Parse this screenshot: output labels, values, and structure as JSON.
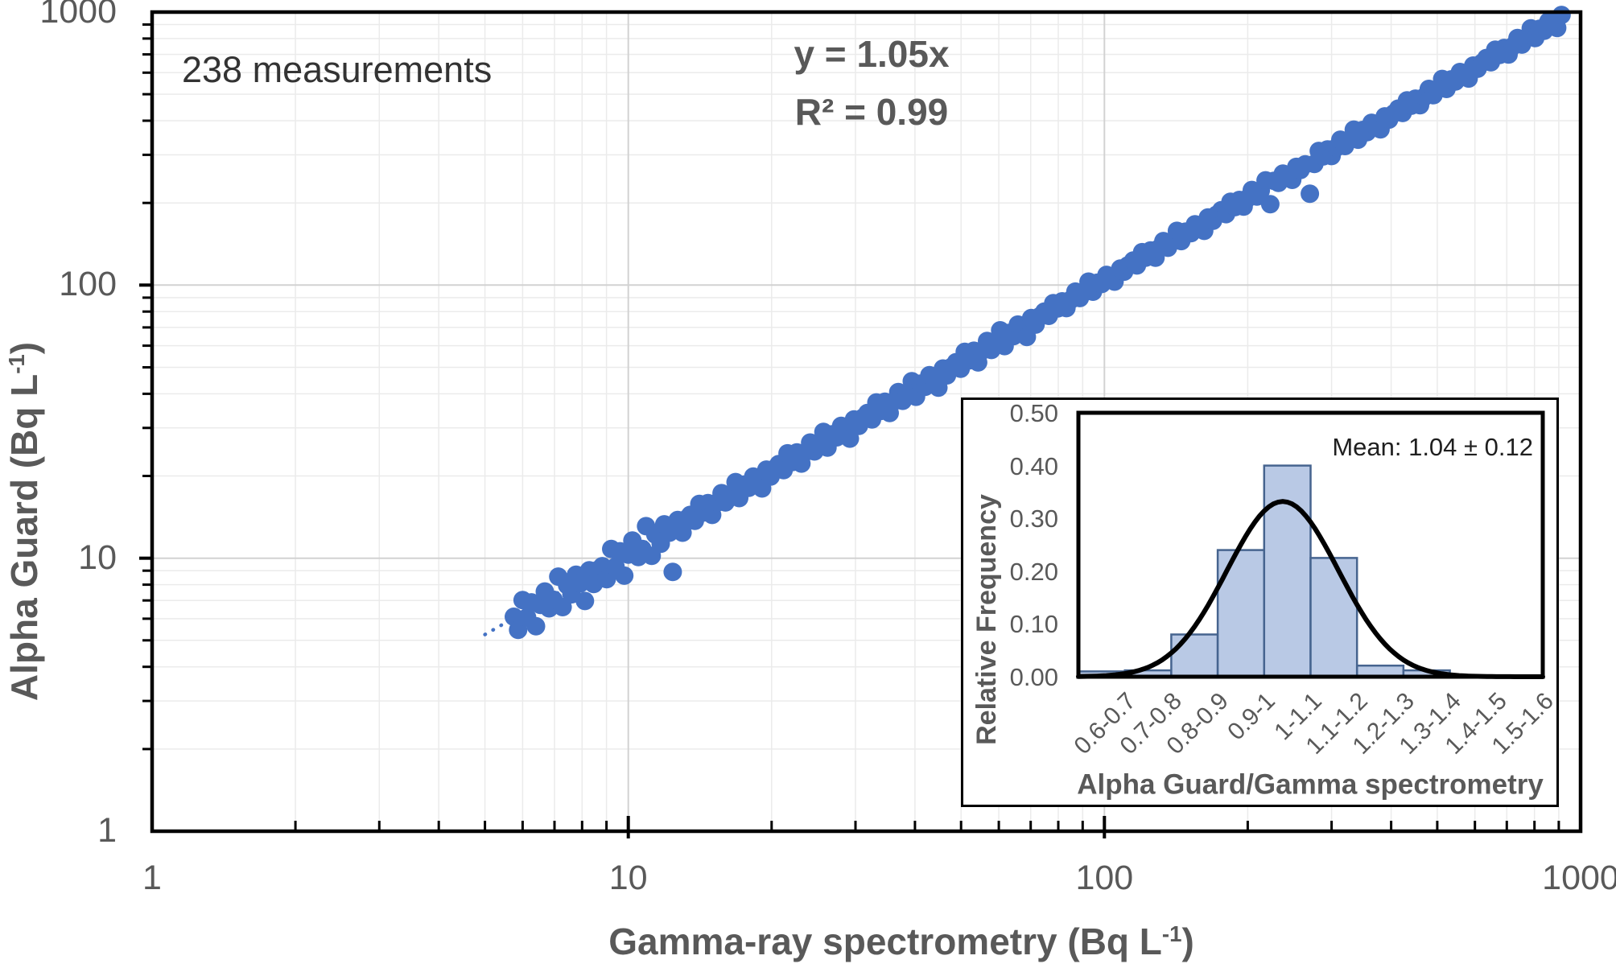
{
  "page": {
    "background": "#ffffff"
  },
  "colors": {
    "scatter": "#4472c4",
    "trendline": "#4472c4",
    "bar_fill": "#b9c9e5",
    "bar_border": "#46648f",
    "curve": "#000000",
    "grid_minor": "#ebebeb",
    "grid_major": "#d2d2d2",
    "axis": "#000000",
    "text_gray": "#595959",
    "annotation_text": "#333333",
    "mean_text": "#1f1f1f"
  },
  "main_chart": {
    "annotation": "238 measurements",
    "equation_line1": "y = 1.05x",
    "equation_line2": "R² = 0.99",
    "x_title": {
      "text": "Gamma-ray spectrometry (Bq L",
      "sup": "-1",
      "close": ")"
    },
    "y_title": {
      "text": "Alpha Guard (Bq L",
      "sup": "-1",
      "close": ")"
    },
    "x_ticks": [
      "1",
      "10",
      "100",
      "1000"
    ],
    "y_ticks": [
      "1000",
      "100",
      "10",
      "1"
    ]
  },
  "inset": {
    "y_title": "Relative Frequency",
    "x_title": "Alpha Guard/Gamma spectrometry",
    "mean_label": "Mean: 1.04 ± 0.12",
    "y_ticks": [
      "0.50",
      "0.40",
      "0.30",
      "0.20",
      "0.10",
      "0.00"
    ]
  },
  "chart_data": [
    {
      "type": "scatter",
      "title": "",
      "xlabel": "Gamma-ray spectrometry (Bq L-1)",
      "ylabel": "Alpha Guard (Bq L-1)",
      "x_scale": "log",
      "y_scale": "log",
      "xlim": [
        1,
        1000
      ],
      "ylim": [
        1,
        1000
      ],
      "n_measurements": 238,
      "annotation": "238 measurements",
      "fit": {
        "equation": "y = 1.05x",
        "slope": 1.05,
        "r_squared": 0.99,
        "style": "dotted"
      },
      "points": [
        [
          5.75,
          6.1
        ],
        [
          5.87,
          5.46
        ],
        [
          6.0,
          7.02
        ],
        [
          6.13,
          6.07
        ],
        [
          6.26,
          6.89
        ],
        [
          6.4,
          5.63
        ],
        [
          6.54,
          6.74
        ],
        [
          6.68,
          7.55
        ],
        [
          6.82,
          6.55
        ],
        [
          6.97,
          7.04
        ],
        [
          7.13,
          8.56
        ],
        [
          7.28,
          6.62
        ],
        [
          7.44,
          7.96
        ],
        [
          7.6,
          7.37
        ],
        [
          7.77,
          8.7
        ],
        [
          7.93,
          8.09
        ],
        [
          8.11,
          6.97
        ],
        [
          8.28,
          9.03
        ],
        [
          8.46,
          8.04
        ],
        [
          8.64,
          9.07
        ],
        [
          8.82,
          9.35
        ],
        [
          9.01,
          8.38
        ],
        [
          9.21,
          10.8
        ],
        [
          9.4,
          9.31
        ],
        [
          9.61,
          10.6
        ],
        [
          9.81,
          8.63
        ],
        [
          10.0,
          10.3
        ],
        [
          10.2,
          11.6
        ],
        [
          10.5,
          10.1
        ],
        [
          10.7,
          10.8
        ],
        [
          10.9,
          13.1
        ],
        [
          11.2,
          10.2
        ],
        [
          11.4,
          12.2
        ],
        [
          11.7,
          11.3
        ],
        [
          11.9,
          13.3
        ],
        [
          12.2,
          12.4
        ],
        [
          12.4,
          8.9
        ],
        [
          12.7,
          13.8
        ],
        [
          13.0,
          12.4
        ],
        [
          13.3,
          14.0
        ],
        [
          13.5,
          14.4
        ],
        [
          13.8,
          13.7
        ],
        [
          14.1,
          15.8
        ],
        [
          14.4,
          14.7
        ],
        [
          14.7,
          15.9
        ],
        [
          15.0,
          14.4
        ],
        [
          15.4,
          16.0
        ],
        [
          15.7,
          17.3
        ],
        [
          16.0,
          16.0
        ],
        [
          16.4,
          16.9
        ],
        [
          16.8,
          19.0
        ],
        [
          17.1,
          16.6
        ],
        [
          17.5,
          18.6
        ],
        [
          17.9,
          18.1
        ],
        [
          18.3,
          19.9
        ],
        [
          18.7,
          19.4
        ],
        [
          19.1,
          18.0
        ],
        [
          19.5,
          21.1
        ],
        [
          19.9,
          19.9
        ],
        [
          20.3,
          21.3
        ],
        [
          20.7,
          22.1
        ],
        [
          21.2,
          21.0
        ],
        [
          21.6,
          24.2
        ],
        [
          22.1,
          22.5
        ],
        [
          22.6,
          24.4
        ],
        [
          23.1,
          22.2
        ],
        [
          23.6,
          24.5
        ],
        [
          24.1,
          26.5
        ],
        [
          24.6,
          24.6
        ],
        [
          25.1,
          25.9
        ],
        [
          25.7,
          29.0
        ],
        [
          26.2,
          25.4
        ],
        [
          26.8,
          28.4
        ],
        [
          27.4,
          27.7
        ],
        [
          28.0,
          30.5
        ],
        [
          28.6,
          29.7
        ],
        [
          29.2,
          27.4
        ],
        [
          29.8,
          32.2
        ],
        [
          30.5,
          30.5
        ],
        [
          31.1,
          32.7
        ],
        [
          31.8,
          34.0
        ],
        [
          32.5,
          32.2
        ],
        [
          33.2,
          37.2
        ],
        [
          33.9,
          34.6
        ],
        [
          34.6,
          37.4
        ],
        [
          35.4,
          34.0
        ],
        [
          36.2,
          37.6
        ],
        [
          36.9,
          40.6
        ],
        [
          37.7,
          37.7
        ],
        [
          38.5,
          39.7
        ],
        [
          39.4,
          44.5
        ],
        [
          40.2,
          39.0
        ],
        [
          41.1,
          43.6
        ],
        [
          42.0,
          42.4
        ],
        [
          42.9,
          46.8
        ],
        [
          43.8,
          45.6
        ],
        [
          44.8,
          42.1
        ],
        [
          45.8,
          49.5
        ],
        [
          46.7,
          46.7
        ],
        [
          47.8,
          50.2
        ],
        [
          48.8,
          52.2
        ],
        [
          49.9,
          49.4
        ],
        [
          50.9,
          57.0
        ],
        [
          52.0,
          53.0
        ],
        [
          53.2,
          57.5
        ],
        [
          54.3,
          52.1
        ],
        [
          55.5,
          57.7
        ],
        [
          56.7,
          62.4
        ],
        [
          57.9,
          57.9
        ],
        [
          59.2,
          61.0
        ],
        [
          60.4,
          68.3
        ],
        [
          61.7,
          59.8
        ],
        [
          63.0,
          66.8
        ],
        [
          64.4,
          65.0
        ],
        [
          65.8,
          71.7
        ],
        [
          67.2,
          69.9
        ],
        [
          68.7,
          64.6
        ],
        [
          70.2,
          75.8
        ],
        [
          71.7,
          71.7
        ],
        [
          73.2,
          76.9
        ],
        [
          74.8,
          80.0
        ],
        [
          76.4,
          77.2
        ],
        [
          78.1,
          85.9
        ],
        [
          79.8,
          82.2
        ],
        [
          81.5,
          87.2
        ],
        [
          83.2,
          82.4
        ],
        [
          85.0,
          88.4
        ],
        [
          86.9,
          94.7
        ],
        [
          88.8,
          89.7
        ],
        [
          90.7,
          94.3
        ],
        [
          92.6,
          103
        ],
        [
          94.6,
          94.6
        ],
        [
          96.6,
          102
        ],
        [
          98.7,
          101
        ],
        [
          101,
          109
        ],
        [
          103,
          107
        ],
        [
          105,
          103
        ],
        [
          108,
          115
        ],
        [
          110,
          112
        ],
        [
          112,
          118
        ],
        [
          115,
          123
        ],
        [
          117,
          118
        ],
        [
          120,
          132
        ],
        [
          122,
          126
        ],
        [
          125,
          134
        ],
        [
          128,
          126
        ],
        [
          130,
          136
        ],
        [
          133,
          145
        ],
        [
          136,
          137
        ],
        [
          139,
          145
        ],
        [
          142,
          158
        ],
        [
          145,
          145
        ],
        [
          148,
          157
        ],
        [
          152,
          155
        ],
        [
          155,
          167
        ],
        [
          158,
          164
        ],
        [
          162,
          158
        ],
        [
          165,
          177
        ],
        [
          169,
          172
        ],
        [
          172,
          181
        ],
        [
          176,
          188
        ],
        [
          180,
          182
        ],
        [
          184,
          202
        ],
        [
          188,
          193
        ],
        [
          192,
          205
        ],
        [
          196,
          194
        ],
        [
          200,
          208
        ],
        [
          204,
          223
        ],
        [
          209,
          211
        ],
        [
          213,
          222
        ],
        [
          218,
          242
        ],
        [
          223,
          198
        ],
        [
          227,
          241
        ],
        [
          232,
          237
        ],
        [
          237,
          256
        ],
        [
          242,
          252
        ],
        [
          248,
          243
        ],
        [
          253,
          271
        ],
        [
          258,
          264
        ],
        [
          264,
          277
        ],
        [
          270,
          216
        ],
        [
          276,
          278
        ],
        [
          282,
          310
        ],
        [
          288,
          296
        ],
        [
          294,
          314
        ],
        [
          300,
          297
        ],
        [
          307,
          319
        ],
        [
          313,
          341
        ],
        [
          320,
          323
        ],
        [
          327,
          340
        ],
        [
          334,
          371
        ],
        [
          341,
          341
        ],
        [
          349,
          370
        ],
        [
          356,
          363
        ],
        [
          364,
          393
        ],
        [
          372,
          387
        ],
        [
          380,
          372
        ],
        [
          388,
          415
        ],
        [
          396,
          404
        ],
        [
          405,
          425
        ],
        [
          414,
          443
        ],
        [
          423,
          427
        ],
        [
          432,
          475
        ],
        [
          441,
          454
        ],
        [
          450,
          482
        ],
        [
          460,
          456
        ],
        [
          470,
          489
        ],
        [
          480,
          523
        ],
        [
          491,
          496
        ],
        [
          501,
          521
        ],
        [
          512,
          569
        ],
        [
          523,
          523
        ],
        [
          535,
          567
        ],
        [
          546,
          557
        ],
        [
          558,
          603
        ],
        [
          570,
          593
        ],
        [
          582,
          571
        ],
        [
          595,
          637
        ],
        [
          608,
          620
        ],
        [
          621,
          652
        ],
        [
          634,
          679
        ],
        [
          648,
          655
        ],
        [
          662,
          728
        ],
        [
          676,
          697
        ],
        [
          691,
          739
        ],
        [
          706,
          699
        ],
        [
          721,
          750
        ],
        [
          737,
          803
        ],
        [
          753,
          760
        ],
        [
          769,
          800
        ],
        [
          786,
          872
        ],
        [
          803,
          803
        ],
        [
          820,
          869
        ],
        [
          838,
          854
        ],
        [
          856,
          924
        ],
        [
          874,
          909
        ],
        [
          893,
          875
        ],
        [
          912,
          976
        ]
      ]
    },
    {
      "type": "bar",
      "title": "",
      "categories": [
        "0.6-0.7",
        "0.7-0.8",
        "0.8-0.9",
        "0.9-1",
        "1-1.1",
        "1.1-1.2",
        "1.2-1.3",
        "1.3-1.4",
        "1.4-1.5",
        "1.5-1.6"
      ],
      "values": [
        0.01,
        0.012,
        0.08,
        0.24,
        0.4,
        0.225,
        0.021,
        0.012,
        0,
        0
      ],
      "xlabel": "Alpha Guard/Gamma spectrometry",
      "ylabel": "Relative Frequency",
      "ylim": [
        0,
        0.5
      ],
      "y_tick_step": 0.1,
      "mean_label": "Mean: 1.04 ± 0.12",
      "normal_curve": {
        "mean": 1.04,
        "sd": 0.12,
        "peak": 0.332
      }
    }
  ]
}
